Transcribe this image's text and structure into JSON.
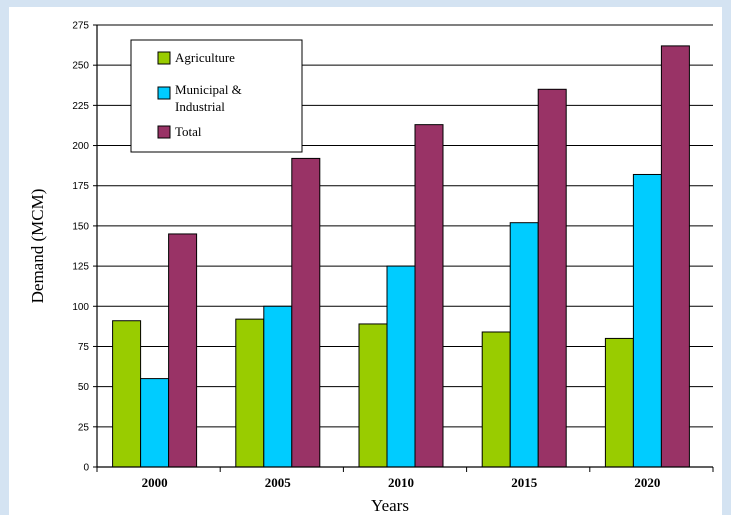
{
  "chart_data": {
    "type": "bar",
    "categories": [
      "2000",
      "2005",
      "2010",
      "2015",
      "2020"
    ],
    "series": [
      {
        "name": "Agriculture",
        "values": [
          91,
          92,
          89,
          84,
          80
        ],
        "color": "#99cc00"
      },
      {
        "name": "Municipal & Industrial",
        "values": [
          55,
          100,
          125,
          152,
          182
        ],
        "color": "#00ccff"
      },
      {
        "name": "Total",
        "values": [
          145,
          192,
          213,
          235,
          262
        ],
        "color": "#993366"
      }
    ],
    "xlabel": "Years",
    "ylabel": "Demand (MCM)",
    "ylim": [
      0,
      275
    ],
    "yticks": [
      "0",
      "25",
      "50",
      "75",
      "100",
      "125",
      "150",
      "175",
      "200",
      "225",
      "250",
      "275"
    ],
    "grid": true,
    "legend_position": "top-left",
    "legend": {
      "items": [
        {
          "lines": [
            "Agriculture"
          ]
        },
        {
          "lines": [
            "Municipal &",
            "Industrial"
          ]
        },
        {
          "lines": [
            "Total"
          ]
        }
      ]
    }
  },
  "colors": {
    "page_background": "#d4e3f2",
    "plot_background": "#ffffff",
    "gridline": "#000000"
  }
}
